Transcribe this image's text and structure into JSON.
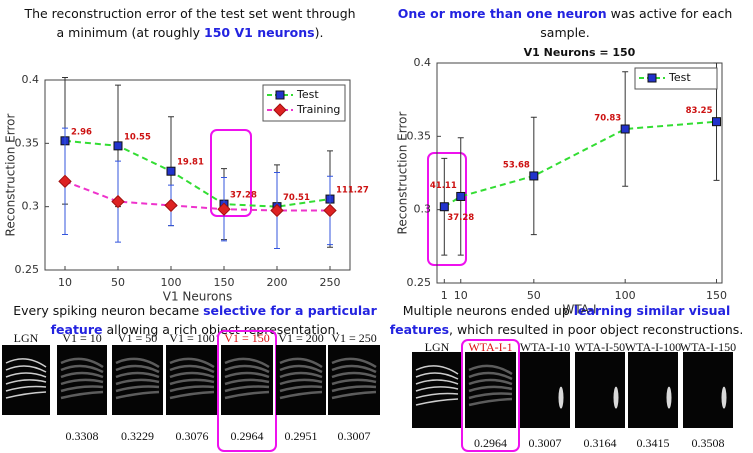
{
  "captions": [
    {
      "segments": [
        {
          "text": "The reconstruction error of the test set went through a minimum (at roughly "
        },
        {
          "text": "150 V1 neurons",
          "bold": true
        },
        {
          "text": ")."
        }
      ]
    },
    {
      "segments": [
        {
          "text": "One or more than one neuron",
          "bold": true
        },
        {
          "text": " was active for each sample."
        }
      ]
    },
    {
      "segments": [
        {
          "text": "Every spiking neuron became "
        },
        {
          "text": "selective for a particular feature",
          "bold": true
        },
        {
          "text": " allowing a rich object representation."
        }
      ]
    },
    {
      "segments": [
        {
          "text": "Multiple neurons ended up "
        },
        {
          "text": "learning similar visual features",
          "bold": true
        },
        {
          "text": ", which resulted in poor object reconstructions."
        }
      ]
    }
  ],
  "emphasis_color": "#2323e0",
  "chart_data": [
    {
      "type": "line",
      "xlabel": "V1 Neurons",
      "ylabel": "Reconstruction Error",
      "categories": [
        "10",
        "50",
        "100",
        "150",
        "200",
        "250"
      ],
      "ylim": [
        0.25,
        0.4
      ],
      "yticks": [
        0.25,
        0.3,
        0.35,
        0.4
      ],
      "legend": "upper right",
      "series": [
        {
          "name": "Test",
          "color": "#33dd33",
          "marker": "square",
          "marker_color": "#2233cc",
          "error_color": "#333333",
          "values": [
            0.352,
            0.348,
            0.328,
            0.302,
            0.3,
            0.306
          ],
          "errors": [
            0.05,
            0.048,
            0.043,
            0.028,
            0.033,
            0.038
          ]
        },
        {
          "name": "Training",
          "color": "#ee33cc",
          "marker": "diamond",
          "marker_color": "#dd2222",
          "error_color": "#3355dd",
          "values": [
            0.32,
            0.304,
            0.301,
            0.298,
            0.297,
            0.297
          ],
          "errors": [
            0.042,
            0.032,
            0.016,
            0.025,
            0.03,
            0.027
          ]
        }
      ],
      "point_labels": [
        2.96,
        10.55,
        19.81,
        37.28,
        70.51,
        111.27
      ],
      "point_label_color": "#cc1111"
    },
    {
      "type": "line",
      "title": "V1 Neurons = 150",
      "xlabel": "WTA-I",
      "ylabel": "Reconstruction Error",
      "x": [
        1,
        10,
        50,
        100,
        150
      ],
      "xlim": [
        -3,
        153
      ],
      "xticks": [
        1,
        10,
        50,
        100,
        150
      ],
      "ylim": [
        0.25,
        0.4
      ],
      "yticks": [
        0.25,
        0.3,
        0.35,
        0.4
      ],
      "legend": "upper right",
      "series": [
        {
          "name": "Test",
          "color": "#33dd33",
          "marker": "square",
          "marker_color": "#2233cc",
          "error_color": "#333333",
          "values": [
            0.302,
            0.309,
            0.323,
            0.355,
            0.36
          ],
          "errors": [
            0.033,
            0.04,
            0.04,
            0.039,
            0.04
          ]
        }
      ],
      "point_labels": [
        37.28,
        41.11,
        53.68,
        70.83,
        83.25
      ],
      "point_label_color": "#cc1111"
    }
  ],
  "strips": [
    {
      "highlight": 4,
      "highlight_color": "#dd1111",
      "images": [
        {
          "label": "LGN"
        },
        {
          "label": "V1 = 10",
          "value": 0.3308
        },
        {
          "label": "V1 = 50",
          "value": 0.3229
        },
        {
          "label": "V1 = 100",
          "value": 0.3076
        },
        {
          "label": "V1 = 150",
          "value": 0.2964
        },
        {
          "label": "V1 = 200",
          "value": 0.2951
        },
        {
          "label": "V1 = 250",
          "value": 0.3007
        }
      ]
    },
    {
      "highlight": 1,
      "highlight_color": "#dd1111",
      "images": [
        {
          "label": "LGN"
        },
        {
          "label": "WTA-I-1",
          "value": 0.2964
        },
        {
          "label": "WTA-I-10",
          "value": 0.3007
        },
        {
          "label": "WTA-I-50",
          "value": 0.3164
        },
        {
          "label": "WTA-I-100",
          "value": 0.3415
        },
        {
          "label": "WTA-I-150",
          "value": 0.3508
        }
      ]
    }
  ]
}
